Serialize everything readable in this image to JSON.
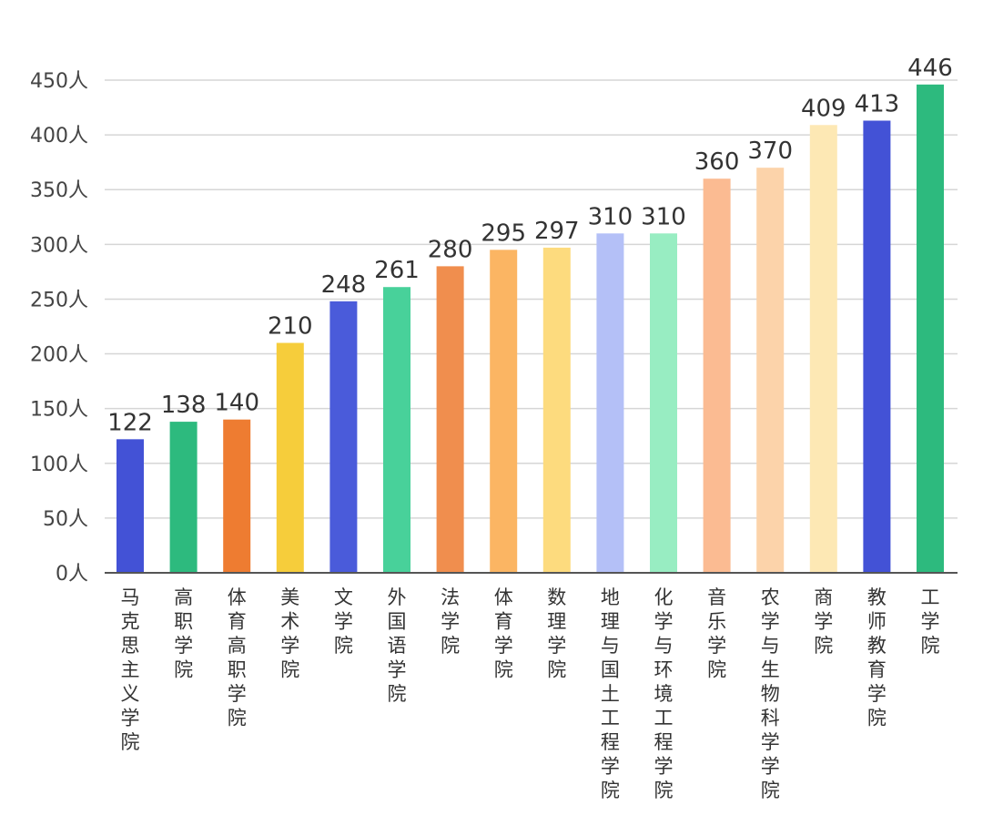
{
  "chart_data": {
    "type": "bar",
    "title": "",
    "xlabel": "",
    "ylabel": "",
    "ylim": [
      0,
      450
    ],
    "grid": true,
    "y_ticks": [
      "0人",
      "50人",
      "100人",
      "150人",
      "200人",
      "250人",
      "300人",
      "350人",
      "400人",
      "450人"
    ],
    "categories": [
      "马克思主义学院",
      "高职学院",
      "体育高职学院",
      "美术学院",
      "文学院",
      "外国语学院",
      "法学院",
      "体育学院",
      "数理学院",
      "地理与国土工程学院",
      "化学与环境工程学院",
      "音乐学院",
      "农学与生物科学学院",
      "商学院",
      "教师教育学院",
      "工学院"
    ],
    "values": [
      122,
      138,
      140,
      210,
      248,
      261,
      280,
      295,
      297,
      310,
      310,
      360,
      370,
      409,
      413,
      446
    ],
    "colors": [
      "#4352D6",
      "#2DBA7E",
      "#EE7C31",
      "#F6CD3B",
      "#4A5BDA",
      "#48D19A",
      "#F08E4E",
      "#FBB563",
      "#FDDB7E",
      "#B4C0F7",
      "#98EDC2",
      "#FBBB92",
      "#FCD3AA",
      "#FDE8B4",
      "#4352D6",
      "#2DBA7E"
    ]
  }
}
